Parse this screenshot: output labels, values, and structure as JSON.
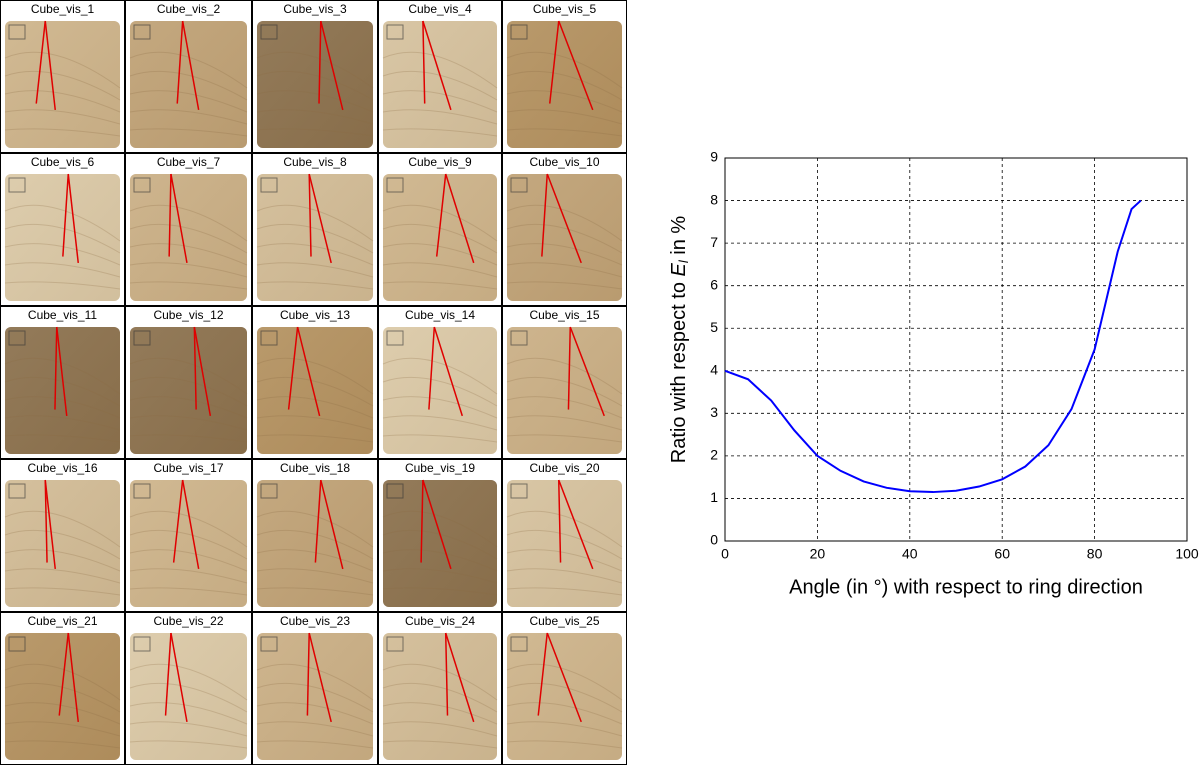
{
  "image_grid": {
    "labels": [
      "Cube_vis_1",
      "Cube_vis_2",
      "Cube_vis_3",
      "Cube_vis_4",
      "Cube_vis_5",
      "Cube_vis_6",
      "Cube_vis_7",
      "Cube_vis_8",
      "Cube_vis_9",
      "Cube_vis_10",
      "Cube_vis_11",
      "Cube_vis_12",
      "Cube_vis_13",
      "Cube_vis_14",
      "Cube_vis_15",
      "Cube_vis_16",
      "Cube_vis_17",
      "Cube_vis_18",
      "Cube_vis_19",
      "Cube_vis_20",
      "Cube_vis_21",
      "Cube_vis_22",
      "Cube_vis_23",
      "Cube_vis_24",
      "Cube_vis_25"
    ]
  },
  "chart_data": {
    "type": "line",
    "ylabel": {
      "before": "Ratio with respect to ",
      "symbol": "E",
      "subscript": "l",
      "after": " in %"
    },
    "xlabel": "Angle (in °) with respect to ring direction",
    "x": [
      0,
      5,
      10,
      15,
      20,
      25,
      30,
      35,
      40,
      45,
      50,
      55,
      60,
      65,
      70,
      75,
      80,
      85,
      88,
      90
    ],
    "values": [
      4.0,
      3.8,
      3.3,
      2.6,
      2.0,
      1.65,
      1.4,
      1.25,
      1.17,
      1.15,
      1.18,
      1.28,
      1.45,
      1.75,
      2.25,
      3.1,
      4.5,
      6.8,
      7.8,
      8.0
    ],
    "color": "#0000ff",
    "xlim": [
      0,
      100
    ],
    "xticks": [
      0,
      20,
      40,
      60,
      80,
      100
    ],
    "ylim": [
      0,
      9
    ],
    "yticks": [
      0,
      1,
      2,
      3,
      4,
      5,
      6,
      7,
      8,
      9
    ],
    "grid": true
  }
}
